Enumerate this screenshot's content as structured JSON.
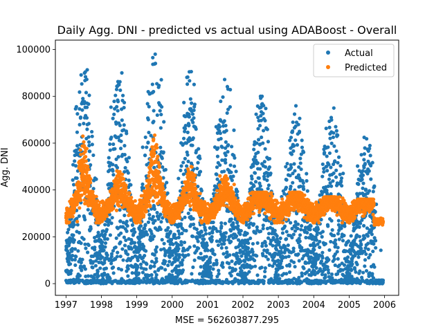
{
  "chart_data": {
    "type": "scatter",
    "title": "Daily Agg. DNI - predicted vs actual using ADABoost - Overall",
    "xlabel": "MSE = 562603877.295",
    "ylabel": "Agg. DNI",
    "xlim": [
      1996.7,
      2006.4
    ],
    "ylim": [
      -5000,
      104000
    ],
    "x_ticks": [
      1997,
      1998,
      1999,
      2000,
      2001,
      2002,
      2003,
      2004,
      2005,
      2006
    ],
    "x_tick_labels": [
      "1997",
      "1998",
      "1999",
      "2000",
      "2001",
      "2002",
      "2003",
      "2004",
      "2005",
      "2006"
    ],
    "y_ticks": [
      0,
      20000,
      40000,
      60000,
      80000,
      100000
    ],
    "y_tick_labels": [
      "0",
      "20000",
      "40000",
      "60000",
      "80000",
      "100000"
    ],
    "grid": false,
    "legend_position": "top-right",
    "series": [
      {
        "name": "Actual",
        "color": "#1f77b4",
        "marker": "circle",
        "description": "daily values from 1997 to 2006, ranging 0 to ~98000, seasonal peaks mid-year decreasing over time, many zeros especially after mid-2005"
      },
      {
        "name": "Predicted",
        "color": "#ff7f0e",
        "marker": "circle",
        "description": "daily predictions, mostly 27000 to 40000 with seasonal bumps up to ~63000 in 1997-1999, flat ~26000 at end of 2005"
      }
    ],
    "seasonal_peaks": [
      {
        "year": 1997,
        "actual_peak": 95000,
        "predicted_peak": 63000
      },
      {
        "year": 1998,
        "actual_peak": 90000,
        "predicted_peak": 50000
      },
      {
        "year": 1999,
        "actual_peak": 98000,
        "predicted_peak": 64000
      },
      {
        "year": 2000,
        "actual_peak": 92000,
        "predicted_peak": 50000
      },
      {
        "year": 2001,
        "actual_peak": 88000,
        "predicted_peak": 46000
      },
      {
        "year": 2002,
        "actual_peak": 80000,
        "predicted_peak": 39000
      },
      {
        "year": 2003,
        "actual_peak": 76000,
        "predicted_peak": 39000
      },
      {
        "year": 2004,
        "actual_peak": 75000,
        "predicted_peak": 37000
      },
      {
        "year": 2005,
        "actual_peak": 63000,
        "predicted_peak": 36000
      }
    ]
  }
}
